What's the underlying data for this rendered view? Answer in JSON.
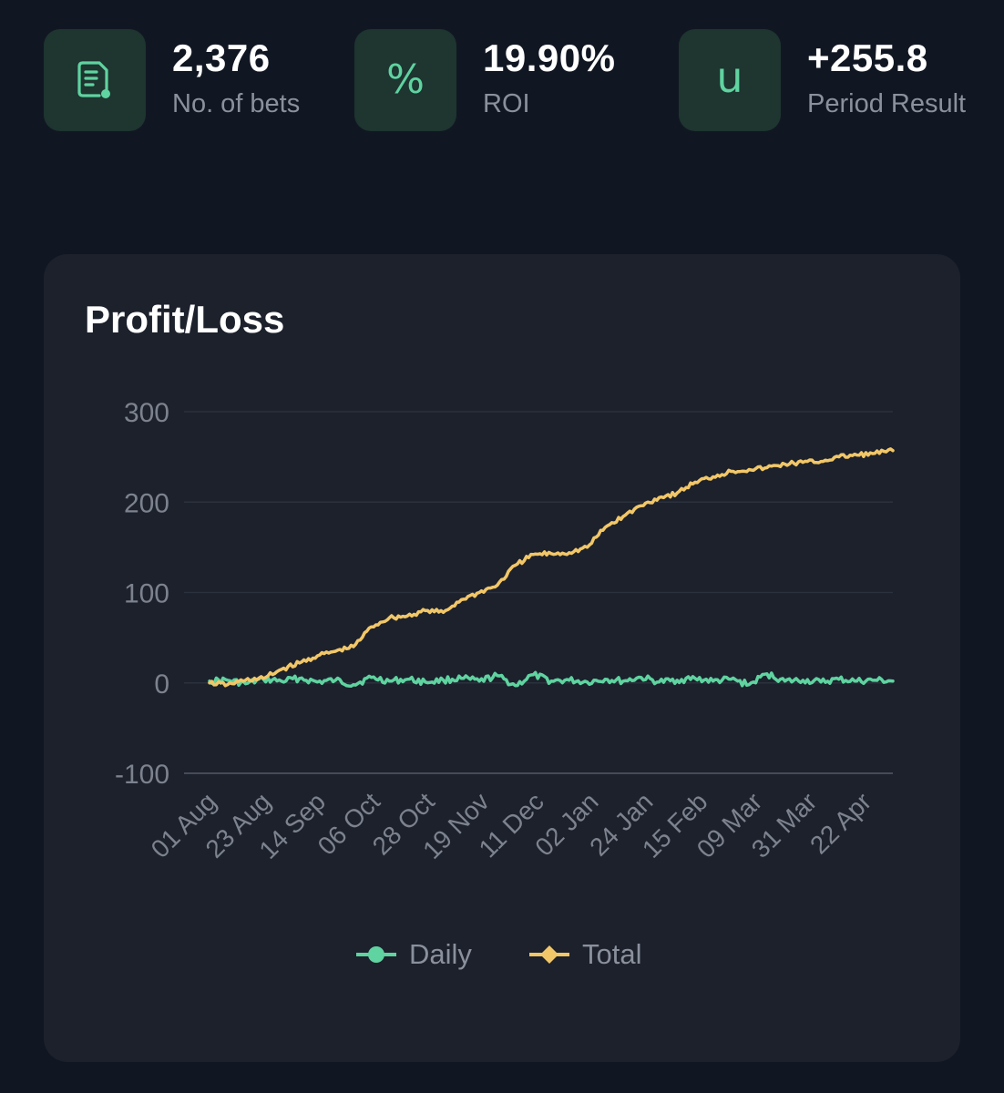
{
  "stats": [
    {
      "value": "2,376",
      "label": "No. of bets",
      "icon": "receipt-icon"
    },
    {
      "value": "19.90%",
      "label": "ROI",
      "icon": "percent-icon",
      "glyph": "%"
    },
    {
      "value": "+255.8",
      "label": "Period Result",
      "icon": "units-icon",
      "glyph": "u"
    }
  ],
  "colors": {
    "accent": "#5fd3a0",
    "daily": "#5fd3a0",
    "total": "#f2c768",
    "card": "#1c212c",
    "background": "#111722"
  },
  "chart_data": {
    "type": "line",
    "title": "Profit/Loss",
    "xlabel": "",
    "ylabel": "",
    "ylim": [
      -100,
      300
    ],
    "yticks": [
      "300",
      "200",
      "100",
      "0",
      "-100"
    ],
    "x_tick_labels": [
      "01 Aug",
      "23 Aug",
      "14 Sep",
      "06 Oct",
      "28 Oct",
      "19 Nov",
      "11 Dec",
      "02 Jan",
      "24 Jan",
      "15 Feb",
      "09 Mar",
      "31 Mar",
      "22 Apr"
    ],
    "grid": true,
    "legend": "bottom",
    "series": [
      {
        "name": "Daily",
        "color": "#5fd3a0",
        "x": [
          "01 Aug",
          "08 Aug",
          "15 Aug",
          "23 Aug",
          "30 Aug",
          "06 Sep",
          "14 Sep",
          "21 Sep",
          "28 Sep",
          "06 Oct",
          "13 Oct",
          "20 Oct",
          "28 Oct",
          "04 Nov",
          "11 Nov",
          "19 Nov",
          "26 Nov",
          "03 Dec",
          "11 Dec",
          "18 Dec",
          "25 Dec",
          "02 Jan",
          "09 Jan",
          "16 Jan",
          "24 Jan",
          "31 Jan",
          "07 Feb",
          "15 Feb",
          "22 Feb",
          "01 Mar",
          "09 Mar",
          "16 Mar",
          "23 Mar",
          "31 Mar",
          "07 Apr",
          "14 Apr",
          "22 Apr",
          "29 Apr",
          "06 May"
        ],
        "values": [
          2,
          3,
          -1,
          4,
          2,
          5,
          1,
          3,
          -2,
          6,
          2,
          4,
          1,
          3,
          5,
          2,
          8,
          -3,
          9,
          2,
          3,
          1,
          4,
          2,
          6,
          1,
          3,
          5,
          2,
          4,
          -2,
          10,
          2,
          3,
          1,
          4,
          2,
          3,
          2
        ]
      },
      {
        "name": "Total",
        "color": "#f2c768",
        "x": [
          "01 Aug",
          "08 Aug",
          "15 Aug",
          "23 Aug",
          "30 Aug",
          "06 Sep",
          "14 Sep",
          "21 Sep",
          "28 Sep",
          "06 Oct",
          "13 Oct",
          "20 Oct",
          "28 Oct",
          "04 Nov",
          "11 Nov",
          "19 Nov",
          "26 Nov",
          "03 Dec",
          "11 Dec",
          "18 Dec",
          "25 Dec",
          "02 Jan",
          "09 Jan",
          "16 Jan",
          "24 Jan",
          "31 Jan",
          "07 Feb",
          "15 Feb",
          "22 Feb",
          "01 Mar",
          "09 Mar",
          "16 Mar",
          "23 Mar",
          "31 Mar",
          "07 Apr",
          "14 Apr",
          "22 Apr",
          "29 Apr",
          "06 May"
        ],
        "values": [
          0,
          -2,
          3,
          5,
          15,
          22,
          30,
          35,
          40,
          62,
          72,
          74,
          80,
          78,
          92,
          100,
          108,
          130,
          142,
          143,
          144,
          150,
          172,
          184,
          196,
          205,
          210,
          222,
          228,
          234,
          236,
          238,
          242,
          244,
          245,
          250,
          252,
          254,
          257
        ]
      }
    ]
  }
}
